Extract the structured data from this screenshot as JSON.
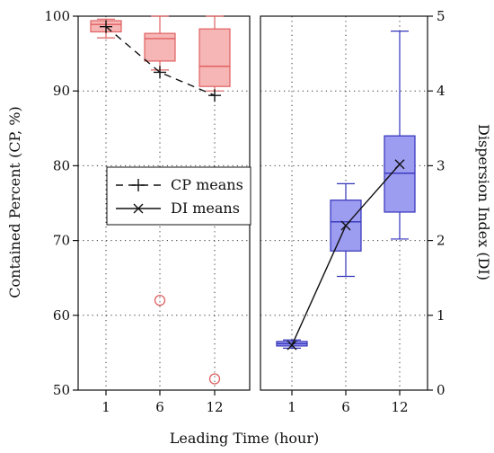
{
  "chart_data": {
    "type": "box",
    "xlabel": "Leading Time (hour)",
    "ylabel_left": "Contained Percent (CP, %)",
    "ylabel_right": "Dispersion Index (DI)",
    "categories": [
      "1",
      "6",
      "12"
    ],
    "ylim_left": [
      50,
      100
    ],
    "ylim_right": [
      0,
      5
    ],
    "yticks_left": [
      "50",
      "60",
      "70",
      "80",
      "90",
      "100"
    ],
    "yticks_right": [
      "0",
      "1",
      "2",
      "3",
      "4",
      "5"
    ],
    "grid": "dotted",
    "colors": {
      "cp_fill": "#f7b6b6",
      "cp_edge": "#e06060",
      "di_fill": "#9c9cf0",
      "di_edge": "#3333bb"
    },
    "cp_boxes": [
      {
        "category": "1",
        "whisker_low": 97.1,
        "q1": 97.9,
        "median": 98.9,
        "q3": 99.4,
        "whisker_high": 99.6,
        "outliers": []
      },
      {
        "category": "6",
        "whisker_low": 92.8,
        "q1": 94.0,
        "median": 97.0,
        "q3": 97.7,
        "whisker_high": 100.0,
        "outliers": [
          62.0
        ]
      },
      {
        "category": "12",
        "whisker_low": 90.0,
        "q1": 90.6,
        "median": 93.3,
        "q3": 98.3,
        "whisker_high": 100.0,
        "outliers": [
          51.5
        ]
      }
    ],
    "di_boxes": [
      {
        "category": "1",
        "whisker_low": 0.56,
        "q1": 0.59,
        "median": 0.62,
        "q3": 0.65,
        "whisker_high": 0.67,
        "outliers": []
      },
      {
        "category": "6",
        "whisker_low": 1.52,
        "q1": 1.86,
        "median": 2.25,
        "q3": 2.54,
        "whisker_high": 2.76,
        "outliers": []
      },
      {
        "category": "12",
        "whisker_low": 2.02,
        "q1": 2.38,
        "median": 2.9,
        "q3": 3.4,
        "whisker_high": 4.8,
        "outliers": []
      }
    ],
    "series": [
      {
        "name": "CP means",
        "axis": "left",
        "marker": "+",
        "line": "dashed",
        "values": [
          98.6,
          92.5,
          89.4
        ]
      },
      {
        "name": "DI means",
        "axis": "right",
        "marker": "x",
        "line": "solid",
        "values": [
          0.6,
          2.2,
          3.02
        ]
      }
    ],
    "legend_position": "middle-left"
  }
}
